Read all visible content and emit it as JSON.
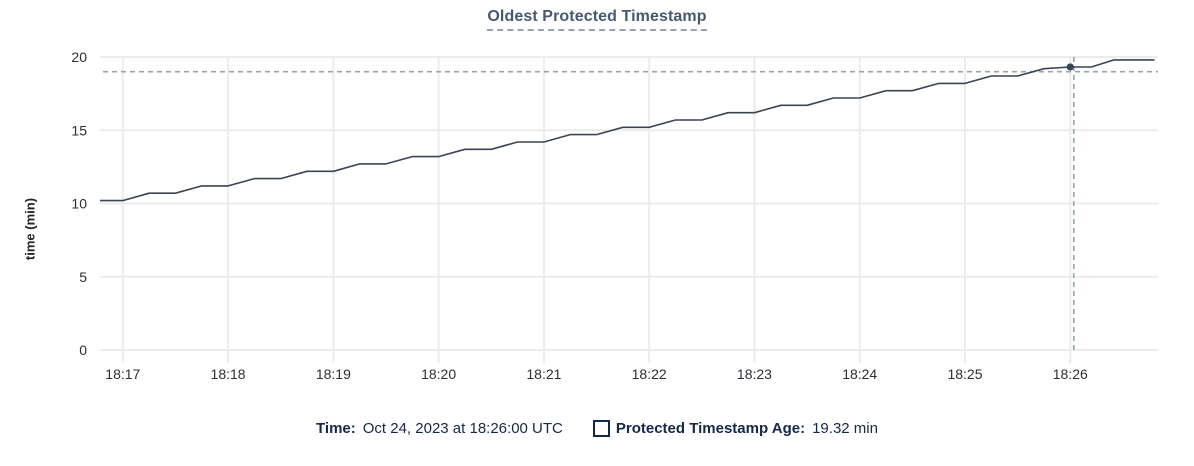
{
  "title": "Oldest Protected Timestamp",
  "y_axis_label": "time (min)",
  "legend": {
    "time_label": "Time:",
    "time_value": "Oct 24, 2023 at 18:26:00 UTC",
    "series_label": "Protected Timestamp Age:",
    "series_value": "19.32 min"
  },
  "colors": {
    "title": "#475872",
    "line": "#394455",
    "grid": "#ececec",
    "tick_text": "#2b2f36",
    "crosshair": "#94a6b2",
    "legend_text": "#152849"
  },
  "chart_data": {
    "type": "line",
    "title": "Oldest Protected Timestamp",
    "xlabel": "",
    "ylabel": "time (min)",
    "ylim": [
      0,
      20
    ],
    "yticks": [
      0,
      5,
      10,
      15,
      20
    ],
    "xticks": [
      "18:17",
      "18:18",
      "18:19",
      "18:20",
      "18:21",
      "18:22",
      "18:23",
      "18:24",
      "18:25",
      "18:26"
    ],
    "x_domain": [
      "18:16:47",
      "18:26:50"
    ],
    "grid": true,
    "legend_position": "bottom",
    "series": [
      {
        "name": "Protected Timestamp Age",
        "unit": "min",
        "points": [
          [
            "18:16:47",
            10.2
          ],
          [
            "18:17:00",
            10.2
          ],
          [
            "18:17:15",
            10.7
          ],
          [
            "18:17:30",
            10.7
          ],
          [
            "18:17:45",
            11.2
          ],
          [
            "18:18:00",
            11.2
          ],
          [
            "18:18:15",
            11.7
          ],
          [
            "18:18:30",
            11.7
          ],
          [
            "18:18:45",
            12.2
          ],
          [
            "18:19:00",
            12.2
          ],
          [
            "18:19:15",
            12.7
          ],
          [
            "18:19:30",
            12.7
          ],
          [
            "18:19:45",
            13.2
          ],
          [
            "18:20:00",
            13.2
          ],
          [
            "18:20:15",
            13.7
          ],
          [
            "18:20:30",
            13.7
          ],
          [
            "18:20:45",
            14.2
          ],
          [
            "18:21:00",
            14.2
          ],
          [
            "18:21:15",
            14.7
          ],
          [
            "18:21:30",
            14.7
          ],
          [
            "18:21:45",
            15.2
          ],
          [
            "18:22:00",
            15.2
          ],
          [
            "18:22:15",
            15.7
          ],
          [
            "18:22:30",
            15.7
          ],
          [
            "18:22:45",
            16.2
          ],
          [
            "18:23:00",
            16.2
          ],
          [
            "18:23:15",
            16.7
          ],
          [
            "18:23:30",
            16.7
          ],
          [
            "18:23:45",
            17.2
          ],
          [
            "18:24:00",
            17.2
          ],
          [
            "18:24:15",
            17.7
          ],
          [
            "18:24:30",
            17.7
          ],
          [
            "18:24:45",
            18.2
          ],
          [
            "18:25:00",
            18.2
          ],
          [
            "18:25:15",
            18.7
          ],
          [
            "18:25:30",
            18.7
          ],
          [
            "18:25:45",
            19.2
          ],
          [
            "18:26:00",
            19.32
          ],
          [
            "18:26:12",
            19.32
          ],
          [
            "18:26:25",
            19.8
          ],
          [
            "18:26:48",
            19.8
          ]
        ]
      }
    ],
    "highlight_point": {
      "time": "18:26:00",
      "value": 19.32
    },
    "crosshair": {
      "time": "18:26:02",
      "value": 19.0
    }
  }
}
